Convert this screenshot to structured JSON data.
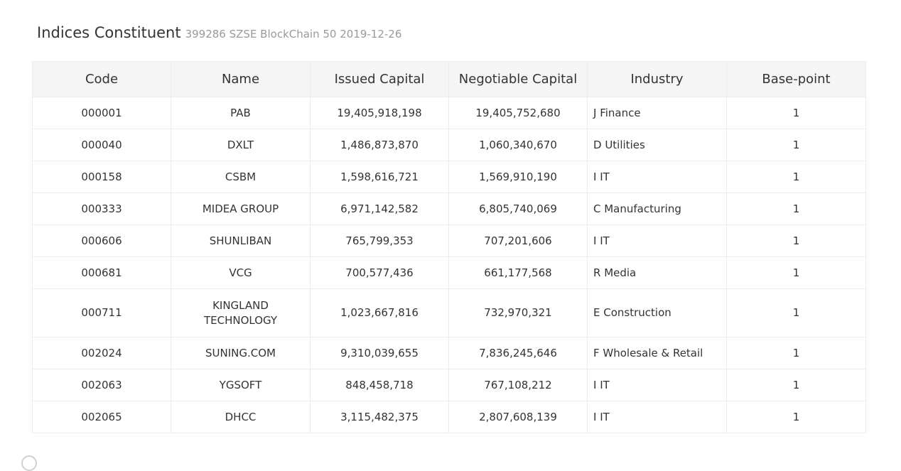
{
  "header": {
    "title": "Indices Constituent",
    "subtitle": "399286 SZSE BlockChain 50 2019-12-26"
  },
  "table": {
    "columns": [
      "Code",
      "Name",
      "Issued Capital",
      "Negotiable Capital",
      "Industry",
      "Base-point"
    ],
    "rows": [
      {
        "code": "000001",
        "name": "PAB",
        "issued": "19,405,918,198",
        "negotiable": "19,405,752,680",
        "industry": "J Finance",
        "base": "1"
      },
      {
        "code": "000040",
        "name": "DXLT",
        "issued": "1,486,873,870",
        "negotiable": "1,060,340,670",
        "industry": "D Utilities",
        "base": "1"
      },
      {
        "code": "000158",
        "name": "CSBM",
        "issued": "1,598,616,721",
        "negotiable": "1,569,910,190",
        "industry": "I IT",
        "base": "1"
      },
      {
        "code": "000333",
        "name": "MIDEA GROUP",
        "issued": "6,971,142,582",
        "negotiable": "6,805,740,069",
        "industry": "C Manufacturing",
        "base": "1"
      },
      {
        "code": "000606",
        "name": "SHUNLIBAN",
        "issued": "765,799,353",
        "negotiable": "707,201,606",
        "industry": "I IT",
        "base": "1"
      },
      {
        "code": "000681",
        "name": "VCG",
        "issued": "700,577,436",
        "negotiable": "661,177,568",
        "industry": "R Media",
        "base": "1"
      },
      {
        "code": "000711",
        "name": "KINGLAND TECHNOLOGY",
        "issued": "1,023,667,816",
        "negotiable": "732,970,321",
        "industry": "E Construction",
        "base": "1"
      },
      {
        "code": "002024",
        "name": "SUNING.COM",
        "issued": "9,310,039,655",
        "negotiable": "7,836,245,646",
        "industry": "F Wholesale & Retail",
        "base": "1"
      },
      {
        "code": "002063",
        "name": "YGSOFT",
        "issued": "848,458,718",
        "negotiable": "767,108,212",
        "industry": "I IT",
        "base": "1"
      },
      {
        "code": "002065",
        "name": "DHCC",
        "issued": "3,115,482,375",
        "negotiable": "2,807,608,139",
        "industry": "I IT",
        "base": "1"
      }
    ]
  }
}
